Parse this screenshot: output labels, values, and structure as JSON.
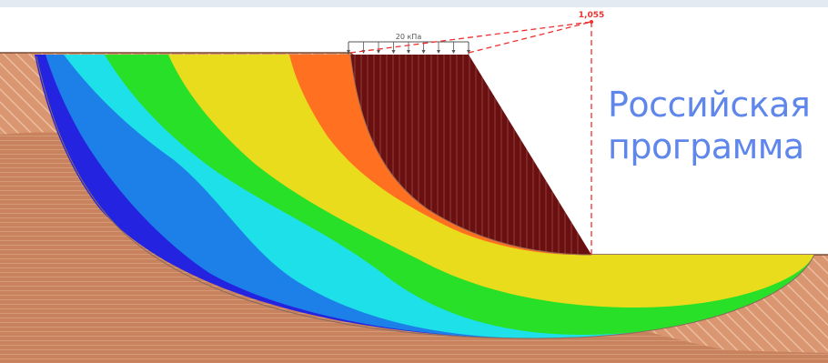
{
  "diagram": {
    "safety_factor": "1,055",
    "load_label": "20 кПа",
    "zone_colors": [
      "#2424e0",
      "#1c80e8",
      "#1ee0e8",
      "#28e028",
      "#e8dc1c",
      "#ff7020",
      "#6a1010"
    ],
    "soil_color": "#c8825e",
    "hatch_color": "#e0aa88",
    "dashed_line_color": "#ee3030"
  },
  "watermark": {
    "line1": "Российская",
    "line2": "программа"
  }
}
